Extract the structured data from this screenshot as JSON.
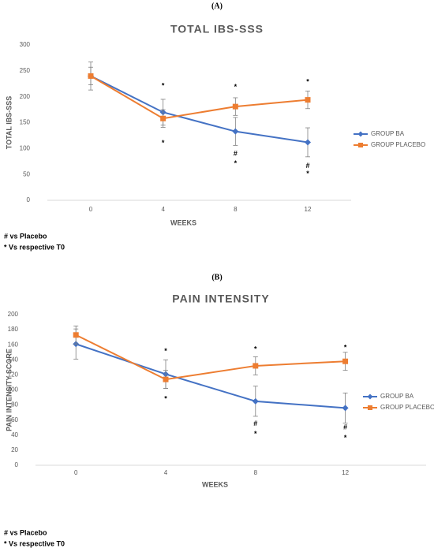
{
  "chart_data": [
    {
      "type": "line",
      "panel": "(A)",
      "title": "TOTAL IBS-SSS",
      "xlabel": "WEEKS",
      "ylabel": "TOTAL IBS-SSS",
      "x": [
        0,
        4,
        8,
        12
      ],
      "xlim": [
        -2.4,
        14.4
      ],
      "xticks": [
        0,
        4,
        8,
        12
      ],
      "ylim": [
        0,
        300
      ],
      "yticks": [
        0,
        50,
        100,
        150,
        200,
        250,
        300
      ],
      "grid": false,
      "legend": "right",
      "series": [
        {
          "name": "GROUP BA",
          "color": "#4472c4",
          "marker": "diamond",
          "values": [
            240,
            170,
            133,
            112
          ],
          "errors": [
            27,
            25,
            27,
            28
          ]
        },
        {
          "name": "GROUP PLACEBO",
          "color": "#ed7d31",
          "marker": "square",
          "values": [
            240,
            158,
            181,
            194
          ],
          "errors": [
            17,
            17,
            17,
            17
          ]
        }
      ],
      "annotations": [
        {
          "text": "*",
          "x": 4,
          "y": 221
        },
        {
          "text": "*",
          "x": 4,
          "y": 110
        },
        {
          "text": "*",
          "x": 8,
          "y": 218
        },
        {
          "text": "#",
          "x": 8,
          "y": 90
        },
        {
          "text": "*",
          "x": 8,
          "y": 71
        },
        {
          "text": "*",
          "x": 12,
          "y": 228
        },
        {
          "text": "#",
          "x": 12,
          "y": 66
        },
        {
          "text": "*",
          "x": 12,
          "y": 51
        }
      ],
      "notes": [
        "# vs Placebo",
        "* Vs respective T0"
      ]
    },
    {
      "type": "line",
      "panel": "(B)",
      "title": "PAIN INTENSITY",
      "xlabel": "WEEKS",
      "ylabel": "PAIN INTENSITY SCORE",
      "x": [
        0,
        4,
        8,
        12
      ],
      "xlim": [
        -1.8,
        15.6
      ],
      "xticks": [
        0,
        4,
        8,
        12
      ],
      "ylim": [
        0,
        200
      ],
      "yticks": [
        0,
        20,
        40,
        60,
        80,
        100,
        120,
        140,
        160,
        180,
        200
      ],
      "grid": false,
      "legend": "right",
      "series": [
        {
          "name": "GROUP BA",
          "color": "#4472c4",
          "marker": "diamond",
          "values": [
            161,
            121,
            85,
            76
          ],
          "errors": [
            20,
            19,
            20,
            20
          ]
        },
        {
          "name": "GROUP PLACEBO",
          "color": "#ed7d31",
          "marker": "square",
          "values": [
            173,
            114,
            132,
            138
          ],
          "errors": [
            12,
            12,
            12,
            12
          ]
        }
      ],
      "annotations": [
        {
          "text": "*",
          "x": 4,
          "y": 151
        },
        {
          "text": "*",
          "x": 4,
          "y": 88
        },
        {
          "text": "*",
          "x": 8,
          "y": 154
        },
        {
          "text": "#",
          "x": 8,
          "y": 55
        },
        {
          "text": "*",
          "x": 8,
          "y": 41
        },
        {
          "text": "*",
          "x": 12,
          "y": 156
        },
        {
          "text": "#",
          "x": 12,
          "y": 50
        },
        {
          "text": "*",
          "x": 12,
          "y": 36
        }
      ],
      "notes": [
        "# vs Placebo",
        "* Vs respective T0"
      ]
    }
  ]
}
